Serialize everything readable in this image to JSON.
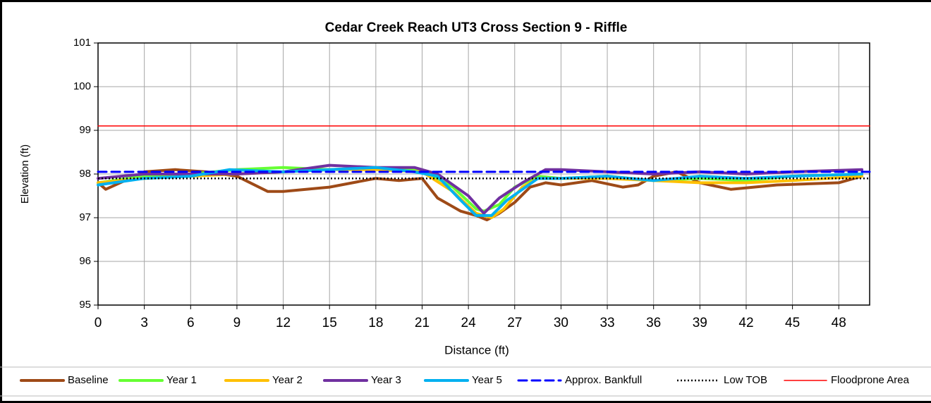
{
  "chart_data": {
    "type": "line",
    "title": "Cedar Creek Reach UT3 Cross Section 9 - Riffle",
    "x_label": "Distance (ft)",
    "y_label": "Elevation (ft)",
    "xlim": [
      0,
      50
    ],
    "ylim": [
      95,
      101
    ],
    "xticks": [
      0,
      3,
      6,
      9,
      12,
      15,
      18,
      21,
      24,
      27,
      30,
      33,
      36,
      39,
      42,
      45,
      48
    ],
    "yticks": [
      95,
      96,
      97,
      98,
      99,
      100,
      101
    ],
    "grid": true,
    "legend": "bottom",
    "series": [
      {
        "name": "Baseline",
        "color": "#9e4a17",
        "style": "solid",
        "width": 4,
        "x": [
          0,
          0.5,
          3,
          5,
          7,
          9,
          11,
          12,
          15,
          18,
          19.5,
          21,
          22,
          23.5,
          24.5,
          25.2,
          26,
          27,
          28,
          29,
          30,
          32,
          34,
          35,
          36,
          37.5,
          39,
          41,
          44,
          48,
          49.5
        ],
        "values": [
          97.8,
          97.65,
          98.05,
          98.1,
          98.05,
          97.95,
          97.6,
          97.6,
          97.7,
          97.9,
          97.85,
          97.9,
          97.45,
          97.15,
          97.05,
          96.95,
          97.1,
          97.35,
          97.7,
          97.8,
          97.75,
          97.85,
          97.7,
          97.75,
          97.95,
          98.05,
          97.8,
          97.65,
          97.75,
          97.8,
          97.95
        ]
      },
      {
        "name": "Year 1",
        "color": "#66ff33",
        "style": "solid",
        "width": 4,
        "x": [
          0,
          3,
          6,
          9,
          12,
          15,
          18,
          21,
          23,
          24.5,
          25,
          26,
          27,
          28.5,
          30,
          33,
          36,
          39,
          42,
          45,
          49.5
        ],
        "values": [
          97.8,
          97.95,
          98.0,
          98.1,
          98.15,
          98.1,
          98.15,
          98.1,
          97.7,
          97.2,
          97.15,
          97.3,
          97.7,
          97.95,
          97.9,
          97.95,
          97.85,
          97.9,
          97.85,
          97.95,
          98.0
        ]
      },
      {
        "name": "Year 2",
        "color": "#ffc000",
        "style": "solid",
        "width": 4,
        "x": [
          0,
          3,
          6,
          9,
          12,
          15,
          18,
          21,
          23,
          24.5,
          25.5,
          26.3,
          27.5,
          28.5,
          30,
          33,
          36,
          39,
          42,
          45,
          49.5
        ],
        "values": [
          97.8,
          97.9,
          97.95,
          98.0,
          98.05,
          98.1,
          98.1,
          98.05,
          97.6,
          97.1,
          97.0,
          97.2,
          97.7,
          97.9,
          97.9,
          97.9,
          97.85,
          97.8,
          97.8,
          97.85,
          97.95
        ]
      },
      {
        "name": "Year 3",
        "color": "#7030a0",
        "style": "solid",
        "width": 4,
        "x": [
          0,
          3,
          6,
          9,
          12,
          15,
          18,
          20.5,
          22,
          24,
          25,
          26,
          27.5,
          29,
          30,
          33,
          36,
          39,
          42,
          45,
          49.5
        ],
        "values": [
          97.9,
          98.0,
          98.0,
          98.0,
          98.05,
          98.2,
          98.15,
          98.15,
          98.0,
          97.5,
          97.1,
          97.45,
          97.8,
          98.1,
          98.1,
          98.05,
          98.0,
          98.05,
          98.0,
          98.05,
          98.1
        ]
      },
      {
        "name": "Year 5",
        "color": "#00b0f0",
        "style": "solid",
        "width": 4,
        "x": [
          0,
          3,
          6,
          8.5,
          12,
          15,
          18,
          20.5,
          22,
          23.5,
          24.5,
          25.5,
          26.5,
          27.5,
          28.5,
          30,
          33,
          36,
          39,
          42,
          45,
          49.5
        ],
        "values": [
          97.75,
          97.9,
          97.95,
          98.1,
          98.05,
          98.1,
          98.15,
          98.05,
          97.95,
          97.4,
          97.05,
          97.05,
          97.4,
          97.65,
          97.9,
          97.9,
          97.95,
          97.85,
          97.95,
          97.9,
          97.95,
          98.0
        ]
      },
      {
        "name": "Approx. Bankfull",
        "color": "#0000ff",
        "style": "dashed",
        "width": 3,
        "x": [
          0,
          50
        ],
        "values": [
          98.05,
          98.05
        ]
      },
      {
        "name": "Low TOB",
        "color": "#000000",
        "style": "dotted",
        "width": 2.5,
        "x": [
          0,
          50
        ],
        "values": [
          97.9,
          97.9
        ]
      },
      {
        "name": "Floodprone Area",
        "color": "#ff0000",
        "style": "solid",
        "width": 1.5,
        "x": [
          0,
          50
        ],
        "values": [
          99.1,
          99.1
        ]
      }
    ]
  }
}
